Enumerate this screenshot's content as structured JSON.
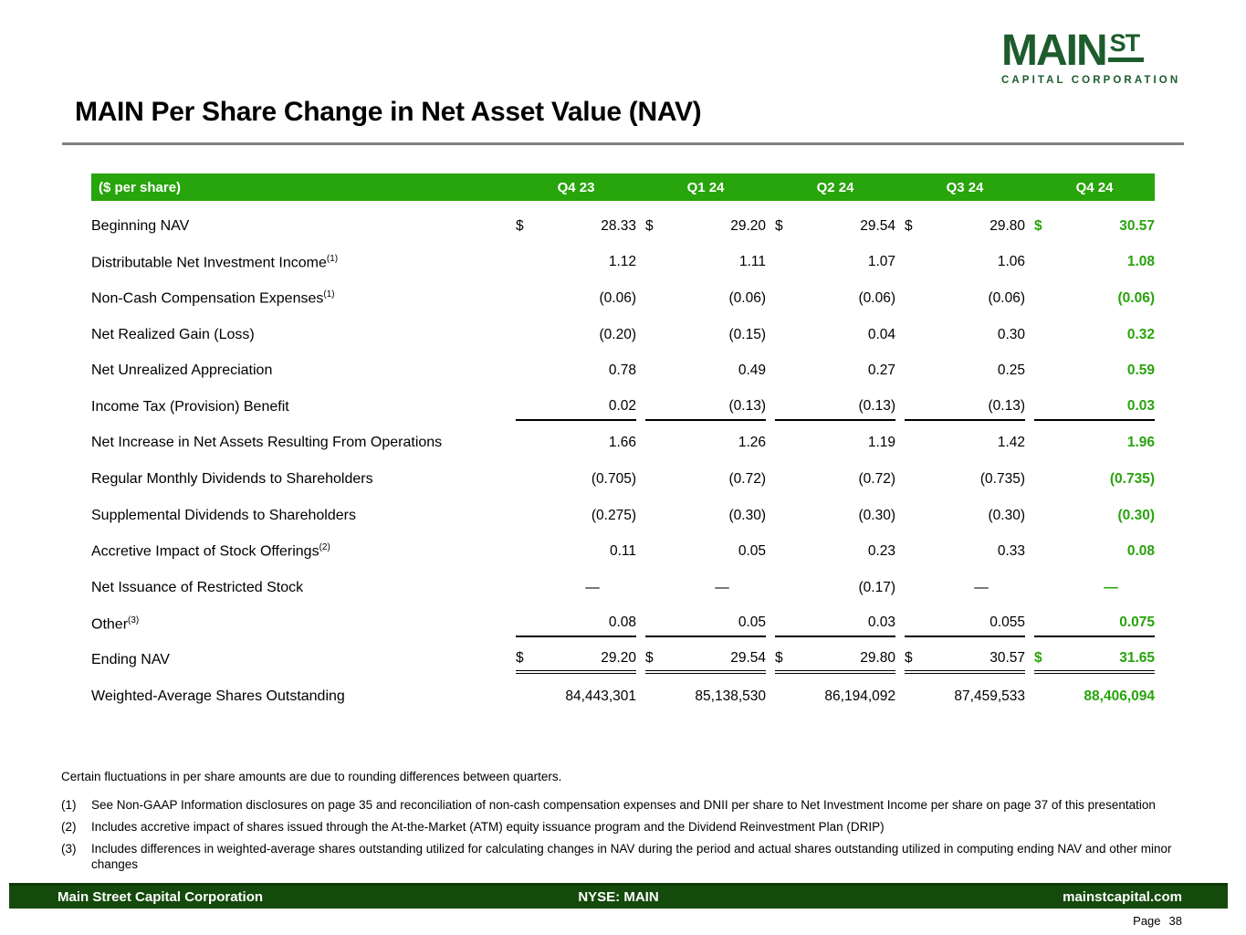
{
  "logo": {
    "main": "MAIN",
    "st": "ST",
    "subtitle": "CAPITAL CORPORATION"
  },
  "title": "MAIN Per Share Change in Net Asset Value (NAV)",
  "table": {
    "header": {
      "label": "($ per share)",
      "columns": [
        "Q4 23",
        "Q1 24",
        "Q2 24",
        "Q3 24",
        "Q4 24"
      ]
    },
    "rows": [
      {
        "label": "Beginning NAV",
        "sup": "",
        "dollar": true,
        "values": [
          "28.33",
          "29.20",
          "29.54",
          "29.80",
          "30.57"
        ]
      },
      {
        "label": "Distributable Net Investment Income",
        "sup": "(1)",
        "dollar": false,
        "values": [
          "1.12",
          "1.11",
          "1.07",
          "1.06",
          "1.08"
        ]
      },
      {
        "label": "Non-Cash Compensation Expenses",
        "sup": "(1)",
        "dollar": false,
        "values": [
          "(0.06)",
          "(0.06)",
          "(0.06)",
          "(0.06)",
          "(0.06)"
        ]
      },
      {
        "label": "Net Realized Gain (Loss)",
        "sup": "",
        "dollar": false,
        "values": [
          "(0.20)",
          "(0.15)",
          "0.04",
          "0.30",
          "0.32"
        ]
      },
      {
        "label": "Net Unrealized Appreciation",
        "sup": "",
        "dollar": false,
        "values": [
          "0.78",
          "0.49",
          "0.27",
          "0.25",
          "0.59"
        ]
      },
      {
        "label": "Income Tax (Provision) Benefit",
        "sup": "",
        "dollar": false,
        "values": [
          "0.02",
          "(0.13)",
          "(0.13)",
          "(0.13)",
          "0.03"
        ],
        "rule_below": "single"
      },
      {
        "label": "Net Increase in Net Assets Resulting From Operations",
        "sup": "",
        "dollar": false,
        "values": [
          "1.66",
          "1.26",
          "1.19",
          "1.42",
          "1.96"
        ]
      },
      {
        "label": "Regular Monthly Dividends to Shareholders",
        "sup": "",
        "dollar": false,
        "values": [
          "(0.705)",
          "(0.72)",
          "(0.72)",
          "(0.735)",
          "(0.735)"
        ]
      },
      {
        "label": "Supplemental Dividends to Shareholders",
        "sup": "",
        "dollar": false,
        "values": [
          "(0.275)",
          "(0.30)",
          "(0.30)",
          "(0.30)",
          "(0.30)"
        ]
      },
      {
        "label": "Accretive Impact of Stock Offerings",
        "sup": "(2)",
        "dollar": false,
        "values": [
          "0.11",
          "0.05",
          "0.23",
          "0.33",
          "0.08"
        ]
      },
      {
        "label": "Net Issuance of Restricted Stock",
        "sup": "",
        "dollar": false,
        "values": [
          "—",
          "—",
          "(0.17)",
          "—",
          "—"
        ]
      },
      {
        "label": "Other",
        "sup": "(3)",
        "dollar": false,
        "values": [
          "0.08",
          "0.05",
          "0.03",
          "0.055",
          "0.075"
        ],
        "rule_below": "single"
      },
      {
        "label": "Ending NAV",
        "sup": "",
        "dollar": true,
        "values": [
          "29.20",
          "29.54",
          "29.80",
          "30.57",
          "31.65"
        ],
        "rule_below": "double"
      },
      {
        "label": "Weighted-Average Shares Outstanding",
        "sup": "",
        "dollar": false,
        "values": [
          "84,443,301",
          "85,138,530",
          "86,194,092",
          "87,459,533",
          "88,406,094"
        ]
      }
    ]
  },
  "notes": {
    "intro": "Certain fluctuations in per share amounts are due to rounding differences between quarters.",
    "items": [
      {
        "num": "(1)",
        "text": "See Non-GAAP Information disclosures on page 35 and reconciliation of non-cash compensation expenses and DNII per share to Net Investment Income per share on page 37 of this presentation"
      },
      {
        "num": "(2)",
        "text": "Includes accretive impact of shares issued through the At-the-Market (ATM) equity issuance program and the Dividend Reinvestment Plan (DRIP)"
      },
      {
        "num": "(3)",
        "text": "Includes differences in weighted-average shares outstanding utilized for calculating changes in NAV during the period and actual shares outstanding utilized in computing ending NAV and other minor changes"
      }
    ]
  },
  "footer": {
    "left": "Main Street Capital Corporation",
    "center": "NYSE: MAIN",
    "right": "mainstcapital.com",
    "page_label": "Page",
    "page_number": "38"
  },
  "colors": {
    "accent_green": "#28a40c",
    "brand_green": "#1d5c2d",
    "footer_green": "#154a0d",
    "footer_edge_green": "#0a3a06",
    "rule_gray": "#808080"
  }
}
